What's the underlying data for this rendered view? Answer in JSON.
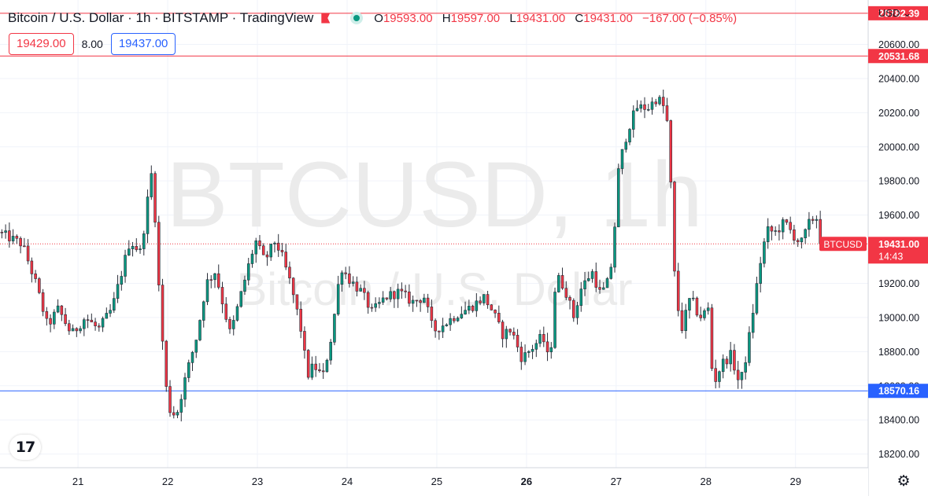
{
  "header": {
    "title": "Bitcoin / U.S. Dollar · 1h · BITSTAMP · TradingView",
    "ohlc": [
      {
        "label": "O",
        "value": "19593.00"
      },
      {
        "label": "H",
        "value": "19597.00"
      },
      {
        "label": "L",
        "value": "19431.00"
      },
      {
        "label": "C",
        "value": "19431.00"
      }
    ],
    "change": "−167.00 (−0.85%)",
    "flag_color": "#f23645",
    "status_color": "#089981"
  },
  "trade": {
    "sell": "19429.00",
    "spread": "8.00",
    "buy": "19437.00"
  },
  "currency": {
    "label": "USD",
    "icon": "chevron-down-icon"
  },
  "watermark": {
    "symbol": "BTCUSD, 1h",
    "name": "Bitcoin / U.S. Dollar"
  },
  "logo": {
    "text": "17",
    "icon": "tradingview-logo"
  },
  "settings": {
    "icon": "gear-icon"
  },
  "colors": {
    "up": "#089981",
    "down": "#f23645",
    "resistance": "#f23645",
    "support": "#2962ff"
  },
  "chart_data": {
    "type": "candlestick",
    "x_ticks": [
      {
        "label": "21",
        "at": 21
      },
      {
        "label": "22",
        "at": 22
      },
      {
        "label": "23",
        "at": 23
      },
      {
        "label": "24",
        "at": 24
      },
      {
        "label": "25",
        "at": 25
      },
      {
        "label": "26",
        "at": 26
      },
      {
        "label": "27",
        "at": 27
      },
      {
        "label": "28",
        "at": 28
      },
      {
        "label": "29",
        "at": 29
      }
    ],
    "xlim": [
      20.13,
      29.81
    ],
    "y_ticks": [
      "18200.00",
      "18400.00",
      "18600.00",
      "18800.00",
      "19000.00",
      "19200.00",
      "19400.00",
      "19600.00",
      "19800.00",
      "20000.00",
      "20200.00",
      "20400.00",
      "20600.00"
    ],
    "ylim": [
      18120,
      20860
    ],
    "grid": true,
    "horizontal_lines": [
      {
        "value": 20782.39,
        "label": "20782.39",
        "color": "#f23645"
      },
      {
        "value": 20531.68,
        "label": "20531.68",
        "color": "#f23645"
      },
      {
        "value": 18570.16,
        "label": "18570.16",
        "color": "#2962ff"
      }
    ],
    "last_price": {
      "value": 19431.0,
      "label": "19431.00",
      "symbol": "BTCUSD",
      "countdown": "14:43",
      "color": "#f23645"
    },
    "path": [
      [
        20.13,
        19500
      ],
      [
        20.4,
        19430
      ],
      [
        20.55,
        19200
      ],
      [
        20.68,
        18950
      ],
      [
        20.8,
        19050
      ],
      [
        20.95,
        18900
      ],
      [
        21.1,
        19000
      ],
      [
        21.25,
        18930
      ],
      [
        21.4,
        19050
      ],
      [
        21.5,
        19250
      ],
      [
        21.6,
        19450
      ],
      [
        21.72,
        19380
      ],
      [
        21.8,
        19700
      ],
      [
        21.85,
        19880
      ],
      [
        21.93,
        19100
      ],
      [
        22.0,
        18600
      ],
      [
        22.05,
        18450
      ],
      [
        22.12,
        18430
      ],
      [
        22.22,
        18650
      ],
      [
        22.35,
        18900
      ],
      [
        22.45,
        19200
      ],
      [
        22.55,
        19270
      ],
      [
        22.65,
        19050
      ],
      [
        22.72,
        18900
      ],
      [
        22.82,
        19100
      ],
      [
        22.92,
        19300
      ],
      [
        23.0,
        19450
      ],
      [
        23.1,
        19330
      ],
      [
        23.22,
        19450
      ],
      [
        23.3,
        19350
      ],
      [
        23.4,
        19180
      ],
      [
        23.5,
        18950
      ],
      [
        23.58,
        18660
      ],
      [
        23.65,
        18720
      ],
      [
        23.75,
        18650
      ],
      [
        23.85,
        18900
      ],
      [
        23.95,
        19300
      ],
      [
        24.05,
        19220
      ],
      [
        24.18,
        19150
      ],
      [
        24.3,
        19030
      ],
      [
        24.45,
        19120
      ],
      [
        24.6,
        19150
      ],
      [
        24.75,
        19090
      ],
      [
        24.88,
        19120
      ],
      [
        24.98,
        18920
      ],
      [
        25.1,
        18960
      ],
      [
        25.25,
        19020
      ],
      [
        25.4,
        19060
      ],
      [
        25.55,
        19120
      ],
      [
        25.65,
        19030
      ],
      [
        25.75,
        18900
      ],
      [
        25.85,
        18930
      ],
      [
        25.97,
        18760
      ],
      [
        26.08,
        18820
      ],
      [
        26.2,
        18890
      ],
      [
        26.28,
        18720
      ],
      [
        26.35,
        19250
      ],
      [
        26.45,
        19170
      ],
      [
        26.55,
        19000
      ],
      [
        26.62,
        19160
      ],
      [
        26.75,
        19270
      ],
      [
        26.85,
        19130
      ],
      [
        26.95,
        19230
      ],
      [
        27.0,
        19500
      ],
      [
        27.05,
        19880
      ],
      [
        27.15,
        20100
      ],
      [
        27.25,
        20230
      ],
      [
        27.38,
        20230
      ],
      [
        27.48,
        20290
      ],
      [
        27.58,
        20210
      ],
      [
        27.62,
        19900
      ],
      [
        27.68,
        19150
      ],
      [
        27.75,
        18930
      ],
      [
        27.85,
        19120
      ],
      [
        27.95,
        19000
      ],
      [
        28.05,
        19050
      ],
      [
        28.1,
        18600
      ],
      [
        28.2,
        18730
      ],
      [
        28.3,
        18780
      ],
      [
        28.4,
        18600
      ],
      [
        28.48,
        18800
      ],
      [
        28.55,
        19050
      ],
      [
        28.62,
        19300
      ],
      [
        28.7,
        19510
      ],
      [
        28.8,
        19500
      ],
      [
        28.9,
        19560
      ],
      [
        29.0,
        19480
      ],
      [
        29.08,
        19430
      ],
      [
        29.18,
        19560
      ],
      [
        29.25,
        19600
      ],
      [
        29.3,
        19431
      ]
    ]
  }
}
